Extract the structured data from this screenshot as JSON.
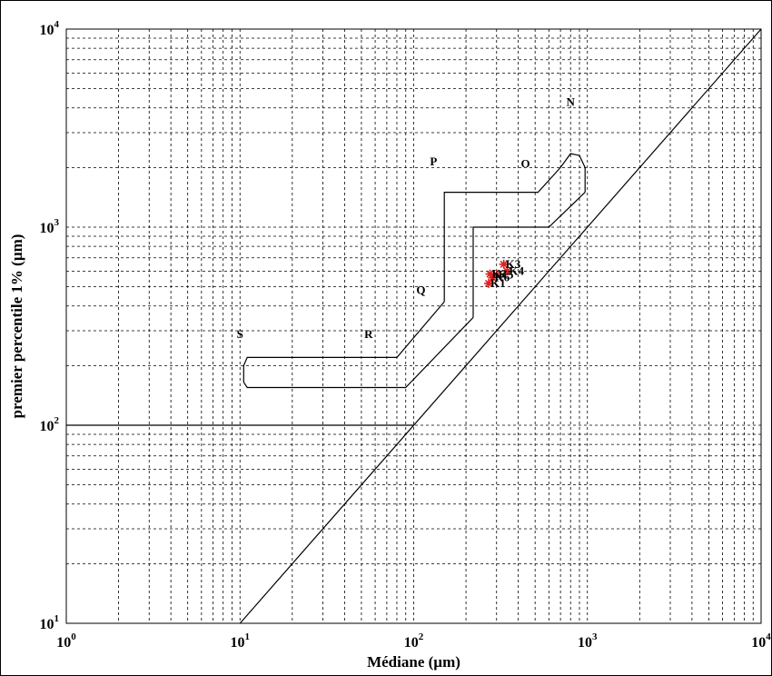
{
  "chart_data": {
    "type": "scatter",
    "xlabel": "Médiane (µm)",
    "ylabel": "premier percentile 1% (µm)",
    "x_scale": "log",
    "y_scale": "log",
    "xlim": [
      1,
      10000
    ],
    "ylim": [
      10,
      10000
    ],
    "grid": true,
    "x_ticks": [
      {
        "base": "10",
        "exp": "0",
        "value": 1
      },
      {
        "base": "10",
        "exp": "1",
        "value": 10
      },
      {
        "base": "10",
        "exp": "2",
        "value": 100
      },
      {
        "base": "10",
        "exp": "3",
        "value": 1000
      },
      {
        "base": "10",
        "exp": "4",
        "value": 10000
      }
    ],
    "y_ticks": [
      {
        "base": "10",
        "exp": "1",
        "value": 10
      },
      {
        "base": "10",
        "exp": "2",
        "value": 100
      },
      {
        "base": "10",
        "exp": "3",
        "value": 1000
      },
      {
        "base": "10",
        "exp": "4",
        "value": 10000
      }
    ],
    "lines": [
      {
        "id": "diagonal",
        "points": [
          [
            10,
            10
          ],
          [
            10000,
            10000
          ]
        ]
      },
      {
        "id": "horizontal-100",
        "points": [
          [
            1,
            100
          ],
          [
            100,
            100
          ]
        ]
      },
      {
        "id": "boundary-upper",
        "points": [
          [
            150,
            420
          ],
          [
            150,
            1500
          ],
          [
            520,
            1500
          ],
          [
            700,
            2000
          ],
          [
            800,
            2350
          ],
          [
            900,
            2300
          ],
          [
            970,
            2000
          ],
          [
            970,
            1500
          ]
        ]
      },
      {
        "id": "boundary-lower",
        "points": [
          [
            220,
            350
          ],
          [
            220,
            1000
          ],
          [
            600,
            1000
          ],
          [
            970,
            1500
          ]
        ]
      },
      {
        "id": "boundary-top-left",
        "points": [
          [
            150,
            420
          ],
          [
            80,
            220
          ],
          [
            11,
            220
          ],
          [
            10.5,
            200
          ],
          [
            10.5,
            165
          ],
          [
            11,
            155
          ],
          [
            90,
            155
          ],
          [
            220,
            350
          ]
        ]
      }
    ],
    "regions": [
      {
        "label": "N",
        "x": 800,
        "y": 4100
      },
      {
        "label": "O",
        "x": 440,
        "y": 2000
      },
      {
        "label": "P",
        "x": 130,
        "y": 2050
      },
      {
        "label": "Q",
        "x": 110,
        "y": 460
      },
      {
        "label": "R",
        "x": 55,
        "y": 275
      },
      {
        "label": "S",
        "x": 10,
        "y": 275
      }
    ],
    "points": [
      {
        "label": "K1",
        "x": 270,
        "y": 520
      },
      {
        "label": "K2",
        "x": 275,
        "y": 580
      },
      {
        "label": "K3",
        "x": 330,
        "y": 650
      },
      {
        "label": "K4",
        "x": 345,
        "y": 600
      },
      {
        "label": "K5",
        "x": 300,
        "y": 575
      },
      {
        "label": "K6",
        "x": 285,
        "y": 555
      }
    ],
    "marker_color": "#e02020"
  }
}
